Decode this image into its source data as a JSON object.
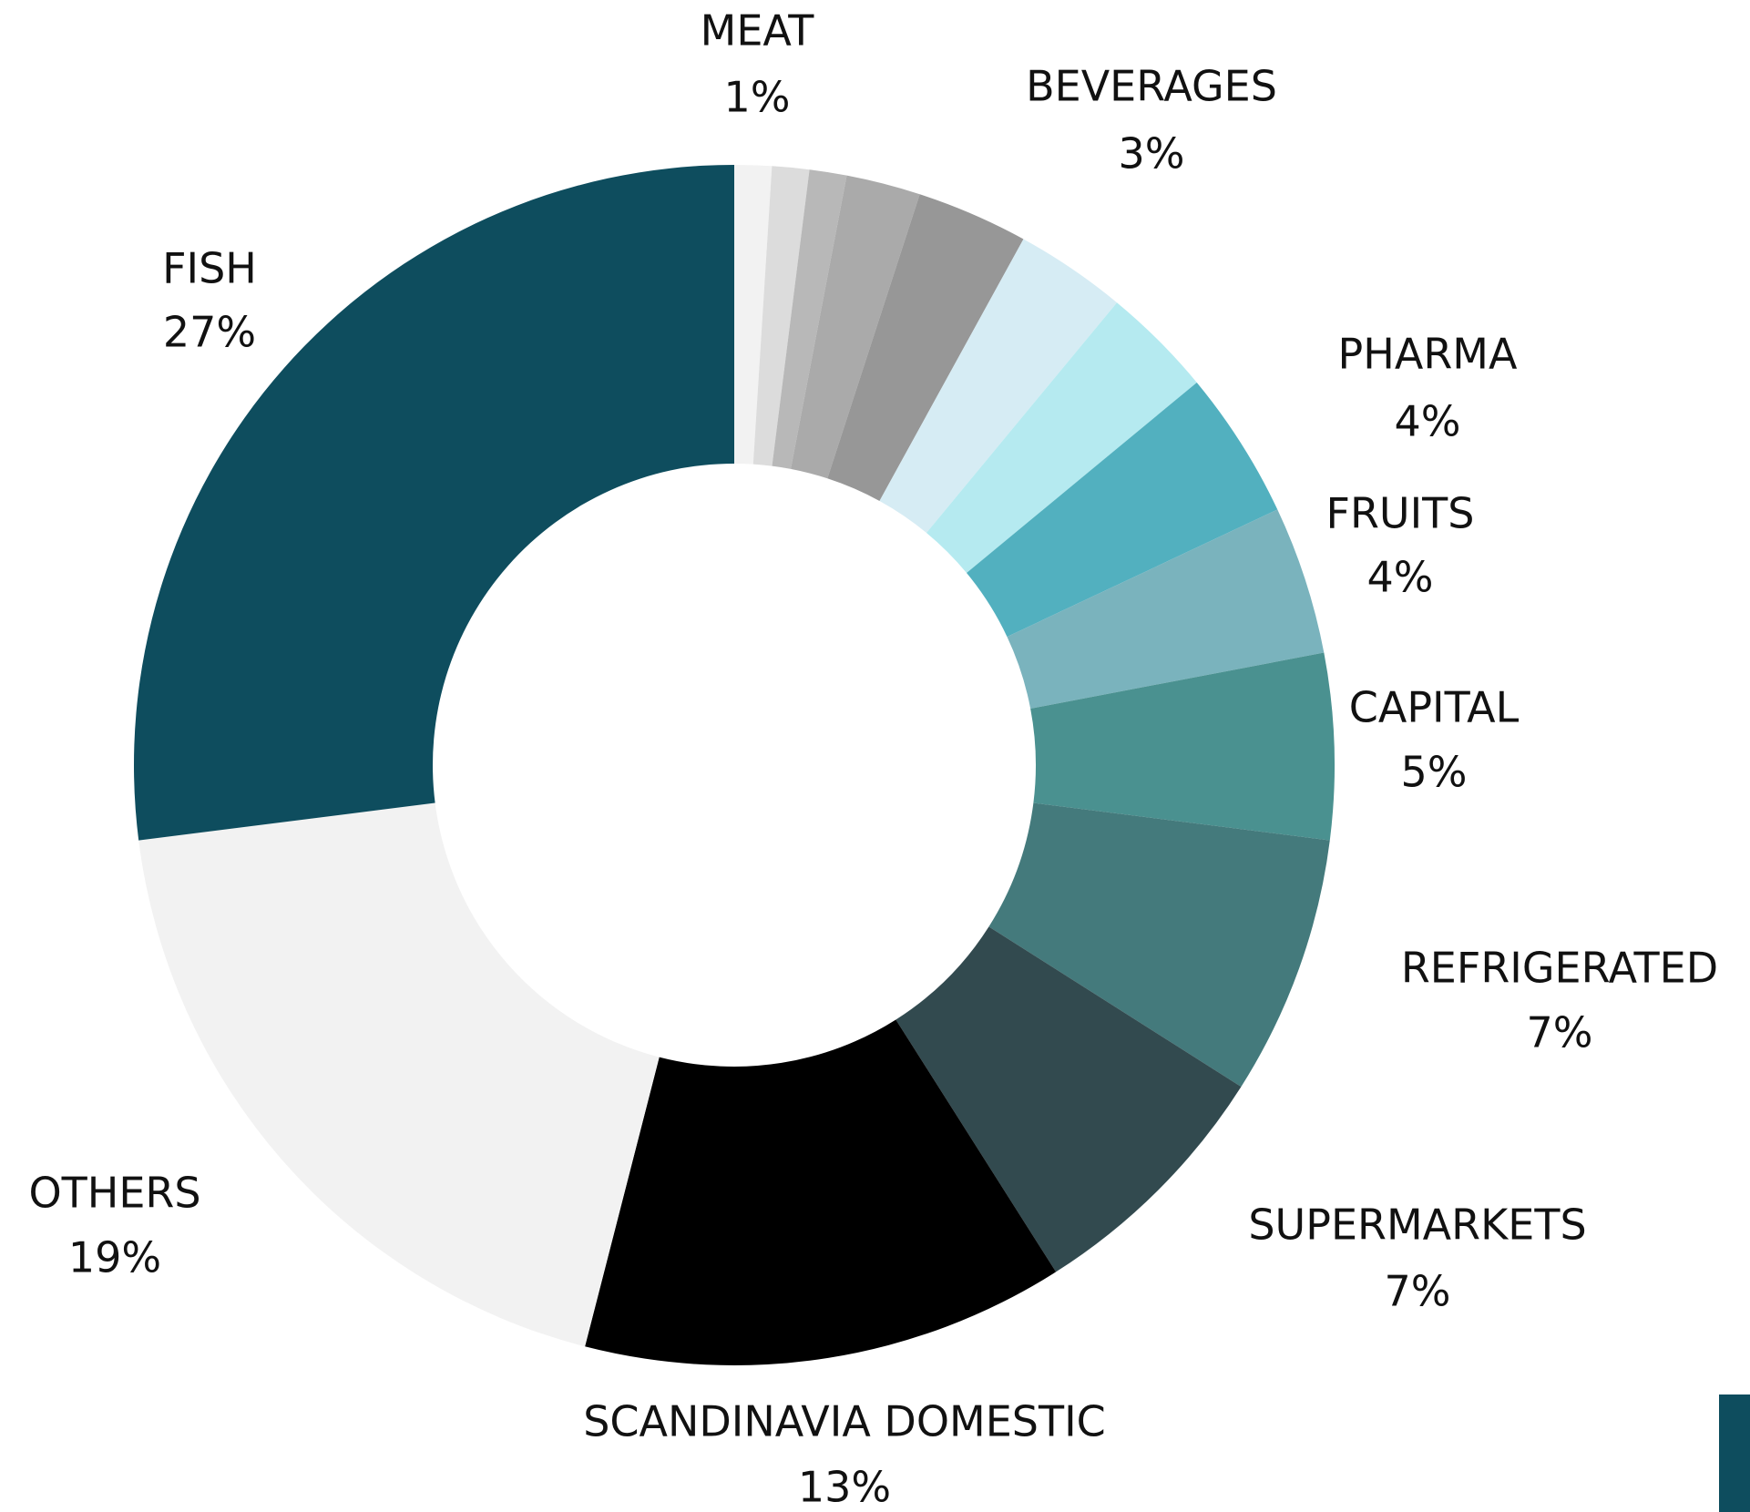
{
  "chart_data": {
    "type": "donut",
    "categories": [
      "MEAT",
      null,
      null,
      null,
      "BEVERAGES",
      null,
      null,
      "PHARMA",
      "FRUITS",
      "CAPITAL",
      "REFRIGERATED",
      "SUPERMARKETS",
      "SCANDINAVIA DOMESTIC",
      "OTHERS",
      "FISH"
    ],
    "values": [
      1,
      1,
      1,
      2,
      3,
      3,
      3,
      4,
      4,
      5,
      7,
      7,
      13,
      19,
      27
    ],
    "value_labels": [
      "1%",
      null,
      null,
      null,
      "3%",
      null,
      null,
      "4%",
      "4%",
      "5%",
      "7%",
      "7%",
      "13%",
      "19%",
      "27%"
    ],
    "colors": [
      "#f2f2f2",
      "#dcdcdc",
      "#b8b8b8",
      "#aaaaaa",
      "#979797",
      "#d6ecf4",
      "#b5eaf0",
      "#52b0bf",
      "#7ab3bd",
      "#4a9190",
      "#447a7c",
      "#324a4f",
      "#000000",
      "#f2f2f2",
      "#0e4d5e"
    ]
  }
}
